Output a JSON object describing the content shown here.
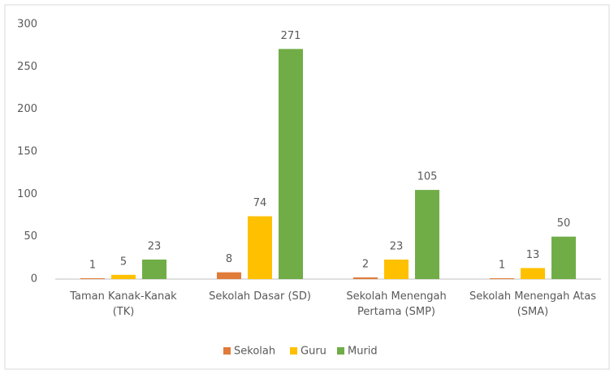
{
  "chart_data": {
    "type": "bar",
    "categories": [
      "Taman Kanak-Kanak (TK)",
      "Sekolah Dasar (SD)",
      "Sekolah Menengah Pertama (SMP)",
      "Sekolah Menengah Atas (SMA)"
    ],
    "series": [
      {
        "name": "Sekolah",
        "color": "#e07b39",
        "values": [
          1,
          8,
          2,
          1
        ]
      },
      {
        "name": "Guru",
        "color": "#ffc000",
        "values": [
          5,
          74,
          23,
          13
        ]
      },
      {
        "name": "Murid",
        "color": "#70ad47",
        "values": [
          23,
          271,
          105,
          50
        ]
      }
    ],
    "ylim": [
      0,
      300
    ],
    "yticks": [
      0,
      50,
      100,
      150,
      200,
      250,
      300
    ],
    "grid": false,
    "legend": "bottom"
  }
}
